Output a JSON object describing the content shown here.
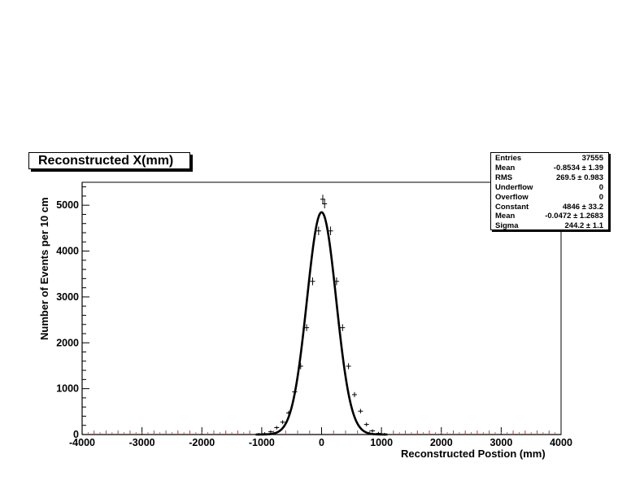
{
  "chart_data": {
    "type": "line",
    "title": "Reconstructed X(mm)",
    "xlabel": "Reconstructed Postion (mm)",
    "ylabel": "Number of Events per 10 cm",
    "xlim": [
      -4000,
      4000
    ],
    "ylim": [
      0,
      5500
    ],
    "x_ticks": [
      "-4000",
      "-3000",
      "-2000",
      "-1000",
      "0",
      "1000",
      "2000",
      "3000",
      "4000"
    ],
    "y_ticks": [
      "0",
      "1000",
      "2000",
      "3000",
      "4000",
      "5000"
    ],
    "grid": false,
    "legend": "none",
    "series": [
      {
        "kind": "histogram points",
        "x": [
          -1050,
          -950,
          -850,
          -750,
          -650,
          -550,
          -450,
          -350,
          -250,
          -150,
          -50,
          50,
          150,
          250,
          350,
          450,
          550,
          650,
          750,
          850,
          950,
          1050
        ],
        "y": [
          5,
          20,
          60,
          150,
          270,
          470,
          930,
          1490,
          2330,
          3340,
          4440,
          5030,
          4440,
          3340,
          2330,
          1490,
          870,
          510,
          220,
          80,
          25,
          5
        ],
        "y_extra": [
          {
            "x": 20,
            "y": 5130
          }
        ]
      },
      {
        "kind": "gaussian fit",
        "constant": 4846,
        "mean": -0.0472,
        "sigma": 244.2
      }
    ],
    "stats": [
      {
        "key": "Entries",
        "value": "37555"
      },
      {
        "key": "Mean",
        "value": "-0.8534 ±  1.39"
      },
      {
        "key": "RMS",
        "value": "269.5 ±  0.983"
      },
      {
        "key": "Underflow",
        "value": "0"
      },
      {
        "key": "Overflow",
        "value": "0"
      },
      {
        "key": "Constant",
        "value": "4846 ± 33.2"
      },
      {
        "key": "Mean",
        "value": "-0.0472 ± 1.2683"
      },
      {
        "key": "Sigma",
        "value": "244.2 ± 1.1"
      }
    ]
  }
}
